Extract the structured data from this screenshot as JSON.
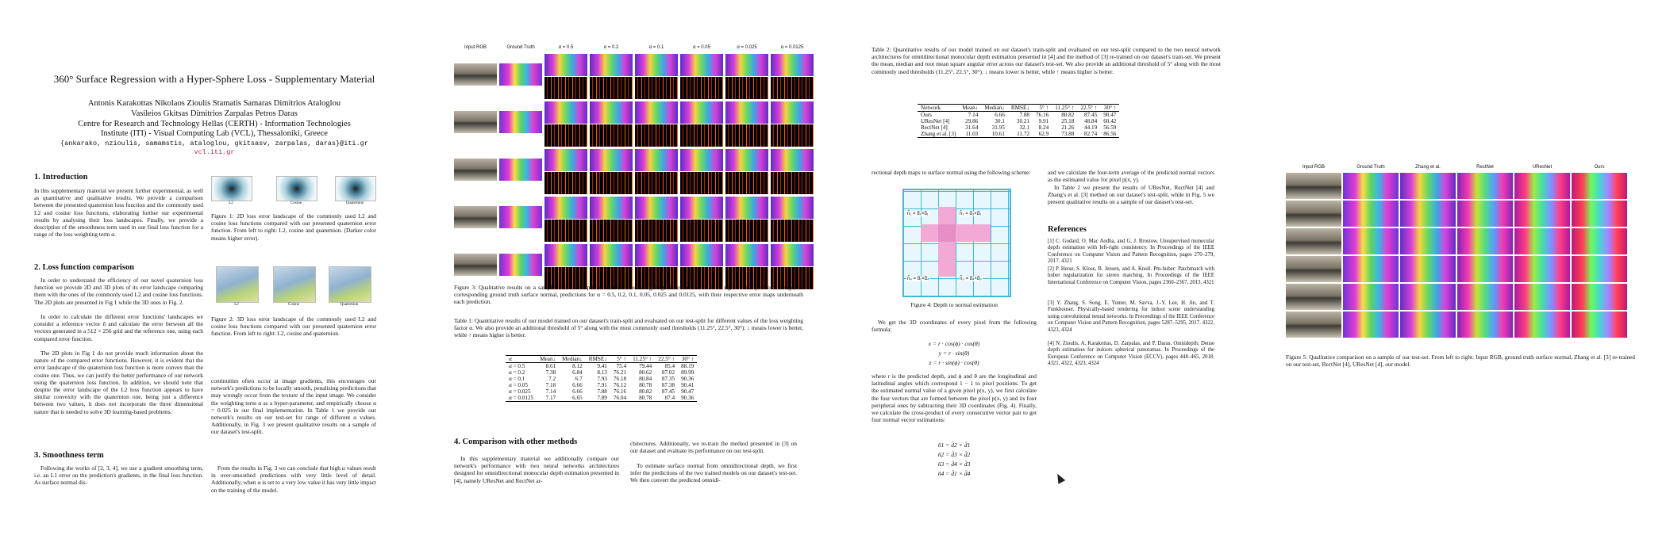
{
  "page1": {
    "title": "360° Surface Regression with a Hyper-Sphere Loss - Supplementary Material",
    "authors_line1": "Antonis Karakottas     Nikolaos Zioulis     Stamatis Samaras     Dimitrios Ataloglou",
    "authors_line2": "Vasileios Gkitsas     Dimitrios Zarpalas     Petros Daras",
    "affil1": "Centre for Research and Technology Hellas (CERTH) - Information Technologies",
    "affil2": "Institute (ITI) - Visual Computing Lab (VCL), Thessaloniki, Greece",
    "emails": "{ankarako, nzioulis, samamstis, ataloglou, gkitsasv, zarpalas, daras}@iti.gr",
    "site": "vcl.iti.gr",
    "h_intro": "1. Introduction",
    "intro": "In this supplementary material we present further experimental, as well as quantitative and qualitative results. We provide a comparison between the presented quaternion loss function and the commonly used L2 and cosine loss functions, elaborating further our experimental results by analysing their loss landscapes. Finally, we provide a description of the smoothness term used in our final loss function for a range of the loss weighting term α.",
    "h_loss": "2. Loss function comparison",
    "loss1": "In order to understand the efficiency of our novel quaternion loss function we provide 2D and 3D plots of its error landscape comparing them with the ones of the commonly used L2 and cosine loss functions. The 2D plots are presented in Fig 1 while the 3D ones in Fig. 2.",
    "loss2": "In order to calculate the different error functions' landscapes we consider a reference vector n̂ and calculate the error between all the vectors generated in a 512 × 256 grid and the reference one, using each compared error function.",
    "loss3": "The 2D plots in Fig 1 do not provide much information about the nature of the compared error functions. However, it is evident that the error landscape of the quaternion loss function is more convex than the cosine one. Thus, we can justify the better performance of our network using the quaternion loss function. In addition, we should note that despite the error landscape of the L2 loss function appears to have similar convexity with the quaternion one, being just a difference between two values, it does not incorporate the three dimensional nature that is needed to solve 3D learning-based problems.",
    "h_smooth": "3. Smoothness term",
    "smooth": "Following the works of [2, 3, 4], we use a gradient smoothing term, i.e. an L1 error on the prediction's gradients, in the final loss function. As surface normal dis-",
    "fig1_labels": [
      "L2",
      "Cosine",
      "Quaternion"
    ],
    "fig1_cap": "Figure 1: 2D loss error landscape of the commonly used L2 and cosine loss functions compared with our presented quaternion error function. From left to right: L2, cosine and quaternion. (Darker color means higher error).",
    "fig2_labels": [
      "L2",
      "Cosine",
      "Quaternion"
    ],
    "fig2_cap": "Figure 2: 3D loss error landscape of the commonly used L2 and cosine loss functions compared with our presented quaternion error function. From left to right: L2, cosine and quaternion.",
    "col2": "continuities often occur at image gradients, this encourages our network's predictions to be locally smooth, penalizing predictions that may wrongly occur from the texture of the input image. We consider the weighting term α as a hyper-parameter, and empirically choose α = 0.025 in our final implementation. In Table 1 we provide our network's results on our test-set for range of different α values. Additionally, in Fig. 3 we present qualitative results on a sample of our dataset's test-split.",
    "col2b": "From the results in Fig. 3 we can conclude that high α values result in over-smoothed predictions with very little level of detail. Additionally, when α is set to a very low value it has very little impact on the training of the model."
  },
  "page2": {
    "grid_headers": [
      "Input RGB",
      "Ground Truth",
      "α = 0.5",
      "α = 0.2",
      "α = 0.1",
      "α = 0.05",
      "α = 0.025",
      "α = 0.0125"
    ],
    "fig3_cap": "Figure 3: Qualitative results on a sample of our test-split for different loss weighting factors α. From left to right: The input color image, its corresponding ground truth surface normal, predictions for α = 0.5, 0.2, 0.1, 0.05, 0.025 and 0.0125, with their respective error maps underneath each prediction.",
    "table1_cap": "Table 1: Quantitative results of our model trained on our dataset's train-split and evaluated on our test-split for different values of the loss weighting factor α. We also provide an additional threshold of 5° along with the most commonly used thresholds (11.25°, 22.5°, 30°). ↓ means lower is better, while ↑ means higher is better.",
    "table1_head": [
      "α",
      "Mean↓",
      "Median↓",
      "RMSE↓",
      "5° ↑",
      "11.25° ↑",
      "22.5° ↑",
      "30° ↑"
    ],
    "table1_rows": [
      [
        "α = 0.5",
        "8.61",
        "8.12",
        "9.41",
        "75.4",
        "79.44",
        "85.4",
        "88.19"
      ],
      [
        "α = 0.2",
        "7.38",
        "6.84",
        "8.13",
        "76.21",
        "80.62",
        "87.02",
        "89.99"
      ],
      [
        "α = 0.1",
        "7.2",
        "6.7",
        "7.93",
        "76.18",
        "80.84",
        "87.35",
        "90.36"
      ],
      [
        "α = 0.05",
        "7.18",
        "6.66",
        "7.91",
        "76.12",
        "80.78",
        "87.38",
        "90.41"
      ],
      [
        "α = 0.025",
        "7.14",
        "6.66",
        "7.88",
        "76.16",
        "80.82",
        "87.45",
        "90.47"
      ],
      [
        "α = 0.0125",
        "7.17",
        "6.65",
        "7.89",
        "76.04",
        "80.78",
        "87.4",
        "90.36"
      ]
    ],
    "h_comp": "4. Comparison with other methods",
    "comp1": "In this supplementary material we additionally compare our network's performance with two neural networks architectures designed for omnidirectional monocular depth estimation presented in [4], namely UResNet and RectNet ar-",
    "comp2": "chitectures. Additionally, we re-train the method presented in [3] on our dataset and evaluate its performance on our test-split.",
    "comp3": "To estimate surface normal from omnidirectional depth, we first infer the predictions of the two trained models on our dataset's test-set. We then convert the predicted omnidi-"
  },
  "page3": {
    "table2_cap": "Table 2: Quantitative results of our model trained on our dataset's train-split and evaluated on our test-split compared to the two neural network architectures for omnidirectional monocular depth estimation presented in [4] and the method of [3] re-trained on our dataset's train-set. We present the mean, median and root mean square angular error across our dataset's test-set. We also provide an additional threshold of 5° along with the most commonly used thresholds (11.25°, 22.5°, 30°). ↓ means lower is better, while ↑ means higher is better.",
    "table2_head": [
      "Network",
      "Mean↓",
      "Median↓",
      "RMSE↓",
      "5° ↑",
      "11.25° ↑",
      "22.5° ↑",
      "30° ↑"
    ],
    "table2_rows": [
      [
        "Ours",
        "7.14",
        "6.66",
        "7.88",
        "76.16",
        "80.82",
        "87.45",
        "90.47"
      ],
      [
        "UResNet [4]",
        "29.86",
        "30.1",
        "30.21",
        "9.91",
        "25.18",
        "48.84",
        "60.42"
      ],
      [
        "RectNet [4]",
        "31.64",
        "31.95",
        "32.1",
        "8.24",
        "21.26",
        "44.19",
        "56.59"
      ],
      [
        "Zhang et al. [3]",
        "11.03",
        "10.61",
        "11.72",
        "62.9",
        "73.88",
        "82.74",
        "86.56"
      ]
    ],
    "colA1": "rectional depth maps to surface normal using the following scheme:",
    "fig4_cap": "Figure 4: Depth to normal estimation",
    "colA2": "We get the 3D coordinates of every pixel from the following formula:",
    "eq1": "x = r · cos(ϕ) · cos(θ)",
    "eq2": "y = r · sin(θ)",
    "eq3": "z = r · sin(ϕ) · cos(θ)",
    "colA3": "where r is the predicted depth, and ϕ and θ are the longitudinal and latitudinal angles which correspond 1 − 1 to pixel positions. To get the estimated normal value of a given pixel p(x, y), we first calculate the four vectors that are formed between the pixel p(x, y) and its four peripheral ones by subtracting their 3D coordinates (Fig. 4). Finally, we calculate the cross-product of every consecutive vector pair to get four normal vector estimations:",
    "eq4": "n̂1 = d̂2 × d̂1",
    "eq5": "n̂2 = d̂3 × d̂2",
    "eq6": "n̂3 = d̂4 × d̂3",
    "eq7": "n̂4 = d̂1 × d̂4",
    "colB1": "and we calculate the four-term average of the predicted normal vectors as the estimated value for pixel p(x, y).",
    "colB2": "In Table 2 we present the results of UResNet, RectNet [4] and Zhang's et al. [3] method on our dataset's test-split, while in Fig. 5 we present qualitative results on a sample of our dataset's test-set.",
    "h_refs": "References",
    "refs": [
      "[1] C. Godard, O. Mac Aodha, and G. J. Brostow. Unsupervised monocular depth estimation with left-right consistency. In Proceedings of the IEEE Conference on Computer Vision and Pattern Recognition, pages 270–279, 2017. 4321",
      "[2] P. Heise, S. Klose, B. Jensen, and A. Knoll. Pm-huber: Patchmatch with huber regularization for stereo matching. In Proceedings of the IEEE International Conference on Computer Vision, pages 2360–2367, 2013. 4321",
      "[3] Y. Zhang, S. Song, E. Yumer, M. Savva, J.-Y. Lee, H. Jin, and T. Funkhouser. Physically-based rendering for indoor scene understanding using convolutional neural networks. In Proceedings of the IEEE Conference on Computer Vision and Pattern Recognition, pages 5287–5295, 2017. 4322, 4323, 4324",
      "[4] N. Zioulis, A. Karakottas, D. Zarpalas, and P. Daras. Omnidepth: Dense depth estimation for indoors spherical panoramas. In Proceedings of the European Conference on Computer Vision (ECCV), pages 448–465, 2018. 4321, 4322, 4323, 4324"
    ]
  },
  "page4": {
    "grid_headers": [
      "Input RGB",
      "Ground Truth",
      "Zhang et al.",
      "RectNet",
      "UResNet",
      "Ours"
    ],
    "fig5_cap": "Figure 5: Qualitative comparison on a sample of our test-set. From left to right: Input RGB, ground truth surface normal, Zhang et al. [3] re-trained on our test-set, RectNet [4], UResNet [4], our model."
  }
}
